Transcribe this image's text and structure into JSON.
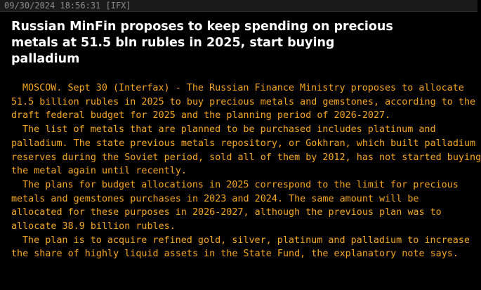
{
  "header": {
    "timestamp": "09/30/2024 18:56:31 [IFX]"
  },
  "article": {
    "headline_lines": [
      "Russian MinFin proposes to keep spending on precious",
      "metals at 51.5 bln rubles in 2025, start buying",
      "palladium"
    ],
    "body_lines": [
      "MOSCOW. Sept 30 (Interfax) - The Russian Finance Ministry proposes to allocate",
      "51.5 billion rubles in 2025 to buy precious metals and gemstones, according to the",
      "draft federal budget for 2025 and the planning period of 2026-2027.",
      "The list of metals that are planned to be purchased includes platinum and",
      "palladium. The state previous metals repository, or Gokhran, which built palladium",
      "reserves during the Soviet period, sold all of them by 2012, has not started buying",
      "the metal again until recently.",
      "The plans for budget allocations in 2025 correspond to the limit for precious",
      "metals and gemstones purchases in 2023 and 2024. The same amount will be",
      "allocated for these purposes in 2026-2027, although the previous plan was to",
      "allocate 38.9 billion rubles.",
      "The plan is to acquire refined gold, silver, platinum and palladium to increase",
      "the share of highly liquid assets in the State Fund, the explanatory note says."
    ]
  },
  "colors": {
    "background": "#000000",
    "headline": "#ffffff",
    "body_text": "#f5a623",
    "timestamp": "#8a8a8a"
  }
}
